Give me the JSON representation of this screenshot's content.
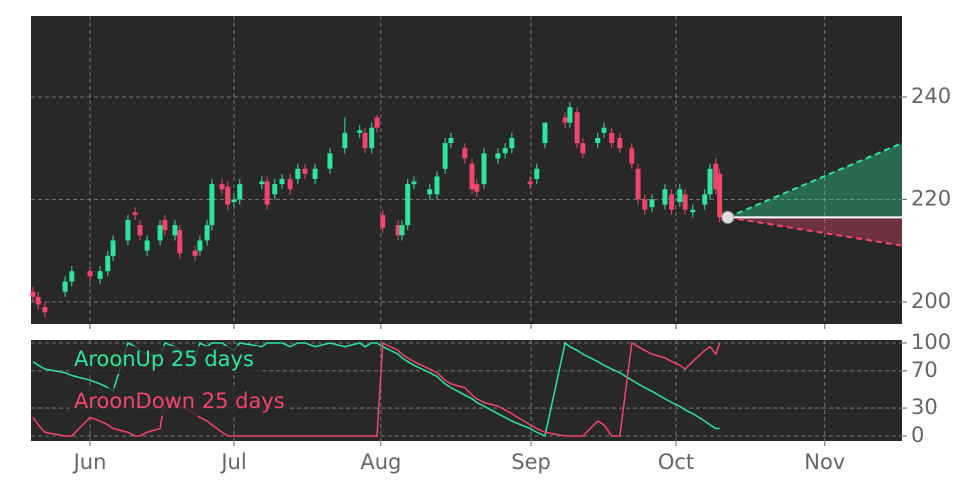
{
  "chart_data": [
    {
      "type": "candlestick",
      "x": [
        0.4,
        1.5,
        2.9,
        7.1,
        8.5,
        12.3,
        14.4,
        16.0,
        17.1,
        20.2,
        21.7,
        22.7,
        24.2,
        26.9,
        27.9,
        30.0,
        31.0,
        34.2,
        35.2,
        36.7,
        37.7,
        39.8,
        41.0,
        42.3,
        43.5,
        48.1,
        49.2,
        50.8,
        52.3,
        54.0,
        55.6,
        57.1,
        59.2,
        62.3,
        65.4,
        68.5,
        69.6,
        71.0,
        72.1,
        73.3,
        76.5,
        77.3,
        78.5,
        79.8,
        83.1,
        84.6,
        86.3,
        87.5,
        90.4,
        91.9,
        92.9,
        94.4,
        97.3,
        98.8,
        100.2,
        104.0,
        105.4,
        107.1,
        111.3,
        112.3,
        113.8,
        115.0,
        118.1,
        119.4,
        121.0,
        122.7,
        125.2,
        126.5,
        127.9,
        129.4,
        132.1,
        133.5,
        135.2,
        136.3,
        137.9,
        140.4,
        141.5,
        142.7,
        143.5
      ],
      "open": [
        202,
        201,
        199,
        202,
        204,
        206,
        204.5,
        206,
        209,
        212,
        217.5,
        215,
        210,
        212,
        216,
        213,
        214,
        210,
        210,
        212,
        215,
        223,
        222.5,
        219.5,
        220,
        223,
        223.5,
        221,
        223,
        224,
        224,
        226,
        224,
        226,
        230,
        233,
        233,
        230,
        236,
        217,
        215,
        213,
        215,
        223,
        221,
        221,
        226,
        231,
        230,
        227,
        223,
        223,
        228,
        229,
        230,
        223.5,
        224,
        231,
        236,
        235,
        237,
        231,
        231,
        233,
        233,
        232,
        230,
        226,
        220,
        218.5,
        219,
        221,
        219.5,
        221,
        217.5,
        219,
        221,
        227,
        225
      ],
      "high": [
        203,
        202,
        200,
        205,
        207,
        207,
        207,
        210,
        213,
        217,
        218.5,
        216,
        213,
        216,
        217,
        216,
        215,
        211,
        213,
        216,
        224,
        224,
        223.5,
        221,
        224,
        224.5,
        224.5,
        224,
        225,
        225,
        227,
        227,
        227,
        230,
        236,
        234.5,
        234,
        235,
        236.5,
        218,
        216,
        216,
        224,
        224.5,
        223,
        225.5,
        232,
        233,
        231,
        228,
        224,
        230,
        230,
        231,
        233,
        224.5,
        227,
        235,
        237,
        239,
        238,
        232,
        233,
        235,
        234,
        233,
        231,
        227,
        221,
        221,
        223,
        222,
        223,
        222,
        219,
        222,
        227,
        228,
        226
      ],
      "low": [
        200,
        198.5,
        197,
        201,
        203,
        204,
        203.5,
        205,
        208,
        211,
        216,
        212,
        209,
        211,
        213,
        212,
        208.5,
        208,
        209,
        211,
        214,
        221,
        218,
        218.5,
        219,
        222,
        218,
        220,
        222,
        221,
        223,
        224,
        223,
        225,
        229,
        232,
        229,
        229,
        233,
        213.5,
        212,
        212,
        214,
        222,
        220,
        220,
        225,
        230,
        227,
        221,
        220.5,
        222,
        227,
        228,
        229,
        222,
        223,
        230,
        234,
        234,
        230,
        228,
        230,
        232,
        230,
        229,
        226,
        219,
        217,
        217.5,
        218,
        217,
        218.5,
        217,
        216.5,
        218,
        220,
        221,
        215.5
      ],
      "close": [
        201,
        199.5,
        198,
        204,
        206,
        205,
        206,
        209,
        212,
        216,
        217,
        213,
        212,
        215,
        214,
        215,
        209.5,
        209,
        212,
        215,
        223,
        222,
        219,
        220,
        223,
        223.5,
        219,
        223,
        224,
        222,
        226,
        225,
        226,
        229,
        233,
        233.5,
        230,
        234,
        234,
        214.5,
        213,
        215,
        223,
        223.5,
        222,
        224.5,
        231,
        232,
        228,
        222,
        221.5,
        229,
        229,
        230,
        232,
        223,
        226,
        235,
        235,
        238,
        231,
        229,
        232,
        234,
        231,
        230,
        227,
        220,
        218,
        220,
        222,
        218,
        222,
        218,
        218,
        221,
        226,
        222,
        216.5
      ],
      "up_color": "#2ee59d",
      "down_color": "#f0466a",
      "forecast": {
        "x": [
          145.2,
          181.5
        ],
        "upper": [
          216.5,
          231
        ],
        "lower": [
          216.5,
          211
        ]
      },
      "xlim": [
        0,
        181.5
      ],
      "ylim": [
        195.7,
        255.8
      ],
      "yticks": [
        200,
        220,
        240
      ],
      "grid": true
    },
    {
      "type": "line",
      "x": [
        0.4,
        1.5,
        2.9,
        7.1,
        8.5,
        12.3,
        14.4,
        16.0,
        17.1,
        20.2,
        21.7,
        22.7,
        24.2,
        26.9,
        27.9,
        30.0,
        31.0,
        34.2,
        35.2,
        36.7,
        37.7,
        39.8,
        41.0,
        42.3,
        43.5,
        48.1,
        49.2,
        50.8,
        52.3,
        54.0,
        55.6,
        57.1,
        59.2,
        62.3,
        65.4,
        68.5,
        69.6,
        71.0,
        72.1,
        73.3,
        76.5,
        77.3,
        78.5,
        79.8,
        83.1,
        84.6,
        86.3,
        87.5,
        90.4,
        91.9,
        92.9,
        94.4,
        97.3,
        98.8,
        100.2,
        104.0,
        105.4,
        107.1,
        111.3,
        112.3,
        113.8,
        115.0,
        118.1,
        119.4,
        121.0,
        122.7,
        125.2,
        126.5,
        127.9,
        129.4,
        132.1,
        133.5,
        135.2,
        136.3,
        137.9,
        140.4,
        141.5,
        142.7,
        143.5
      ],
      "series": [
        {
          "name": "AroonUp 25 days",
          "color": "#2ee59d",
          "values": [
            80,
            76,
            72,
            68,
            65,
            60,
            56,
            52,
            48,
            100,
            96,
            92,
            88,
            84,
            100,
            96,
            92,
            84,
            100,
            96,
            100,
            100,
            96,
            92,
            100,
            96,
            100,
            100,
            100,
            96,
            100,
            100,
            96,
            100,
            96,
            100,
            96,
            100,
            100,
            96,
            88,
            84,
            80,
            76,
            68,
            64,
            56,
            52,
            44,
            40,
            36,
            32,
            24,
            20,
            16,
            8,
            4,
            0,
            100,
            96,
            92,
            88,
            80,
            76,
            72,
            68,
            60,
            56,
            52,
            48,
            40,
            36,
            32,
            28,
            24,
            16,
            12,
            8,
            8
          ]
        },
        {
          "name": "AroonDown 25 days",
          "color": "#f0466a",
          "values": [
            20,
            12,
            4,
            0,
            0,
            20,
            16,
            12,
            8,
            4,
            0,
            0,
            4,
            8,
            40,
            36,
            32,
            24,
            20,
            16,
            12,
            4,
            0,
            0,
            0,
            0,
            0,
            0,
            0,
            0,
            0,
            0,
            0,
            0,
            0,
            0,
            0,
            0,
            0,
            100,
            92,
            88,
            84,
            80,
            72,
            68,
            60,
            56,
            52,
            44,
            40,
            36,
            32,
            28,
            24,
            12,
            8,
            4,
            0,
            0,
            0,
            0,
            16,
            12,
            0,
            0,
            100,
            96,
            92,
            88,
            84,
            80,
            76,
            72,
            80,
            92,
            96,
            88,
            100
          ]
        }
      ],
      "xlim": [
        0,
        181.5
      ],
      "ylim": [
        -5.4,
        103.2
      ],
      "yticks": [
        0,
        30,
        70,
        100
      ],
      "xticks": [
        {
          "value": 12.3,
          "label": "Jun"
        },
        {
          "value": 42.3,
          "label": "Jul"
        },
        {
          "value": 72.9,
          "label": "Aug"
        },
        {
          "value": 104.2,
          "label": "Sep"
        },
        {
          "value": 134.4,
          "label": "Oct"
        },
        {
          "value": 165.4,
          "label": "Nov"
        }
      ],
      "grid": true,
      "legend": "upper left"
    }
  ]
}
